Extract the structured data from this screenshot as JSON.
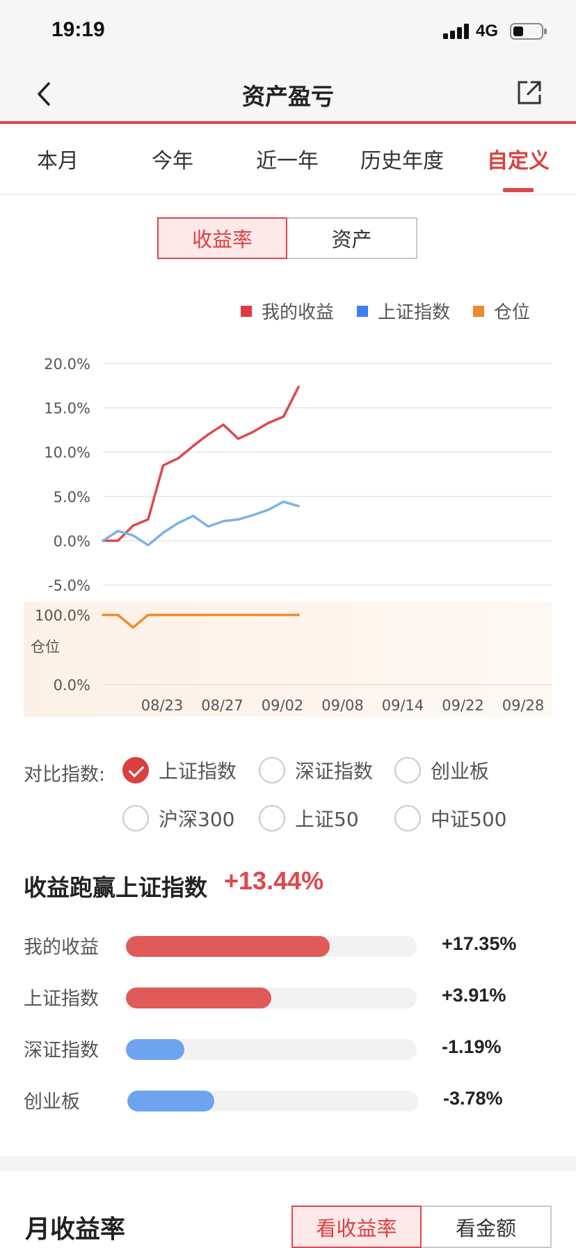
{
  "status_bar": {
    "time": "19:19",
    "network": "4G",
    "battery_level": 0.35
  },
  "nav": {
    "title": "资产盈亏",
    "back_icon": "chevron-left-icon",
    "share_icon": "share-icon"
  },
  "period_tabs": [
    {
      "label": "本月",
      "active": false
    },
    {
      "label": "今年",
      "active": false
    },
    {
      "label": "近一年",
      "active": false
    },
    {
      "label": "历史年度",
      "active": false
    },
    {
      "label": "自定义",
      "active": true
    }
  ],
  "view_toggle": {
    "options": [
      "收益率",
      "资产"
    ],
    "selected": "收益率"
  },
  "legend": [
    {
      "label": "我的收益",
      "color": "#dd3b3f"
    },
    {
      "label": "上证指数",
      "color": "#3b7ff0"
    },
    {
      "label": "仓位",
      "color": "#f08a2a"
    }
  ],
  "chart_data": {
    "type": "line",
    "x_tick_labels": [
      "08/23",
      "08/27",
      "09/02",
      "09/08",
      "09/14",
      "09/22",
      "09/28"
    ],
    "y_tick_labels": [
      "20.0%",
      "15.0%",
      "10.0%",
      "5.0%",
      "0.0%",
      "-5.0%"
    ],
    "ylim": [
      -5,
      20
    ],
    "points_per_tick": 4,
    "series": [
      {
        "name": "我的收益",
        "color": "#e0474c",
        "values": [
          0,
          0,
          1.7,
          2.4,
          8.5,
          9.3,
          10.7,
          12.0,
          13.1,
          11.5,
          12.3,
          13.3,
          14.0,
          17.35
        ]
      },
      {
        "name": "上证指数",
        "color": "#7fb0e8",
        "values": [
          0,
          1.1,
          0.6,
          -0.5,
          0.9,
          2.0,
          2.8,
          1.6,
          2.2,
          2.4,
          2.9,
          3.5,
          4.4,
          3.91
        ]
      }
    ],
    "position_panel": {
      "label": "仓位",
      "y_tick_labels": [
        "100.0%",
        "0.0%"
      ],
      "ylim": [
        0,
        100
      ],
      "series": [
        {
          "name": "仓位",
          "color": "#f08a2a",
          "values": [
            100,
            100,
            82,
            100,
            100,
            100,
            100,
            100,
            100,
            100,
            100,
            100,
            100,
            100
          ]
        }
      ]
    }
  },
  "compare": {
    "label": "对比指数:",
    "options": [
      {
        "label": "上证指数",
        "checked": true
      },
      {
        "label": "深证指数",
        "checked": false
      },
      {
        "label": "创业板",
        "checked": false
      },
      {
        "label": "沪深300",
        "checked": false
      },
      {
        "label": "上证50",
        "checked": false
      },
      {
        "label": "中证500",
        "checked": false
      }
    ]
  },
  "beat": {
    "title": "收益跑赢上证指数",
    "value": "+13.44%"
  },
  "comparison_rows": [
    {
      "label": "我的收益",
      "value": "+17.35%",
      "bar_fraction": 0.7,
      "color": "#e05a5a"
    },
    {
      "label": "上证指数",
      "value": "+3.91%",
      "bar_fraction": 0.5,
      "color": "#e05a5a"
    },
    {
      "label": "深证指数",
      "value": "-1.19%",
      "bar_fraction": 0.2,
      "color": "#6ea3ee"
    },
    {
      "label": "创业板",
      "value": "-3.78%",
      "bar_fraction": 0.3,
      "color": "#6ea3ee"
    }
  ],
  "monthly": {
    "title": "月收益率",
    "toggle": {
      "options": [
        "看收益率",
        "看金额"
      ],
      "selected": "看收益率"
    }
  }
}
